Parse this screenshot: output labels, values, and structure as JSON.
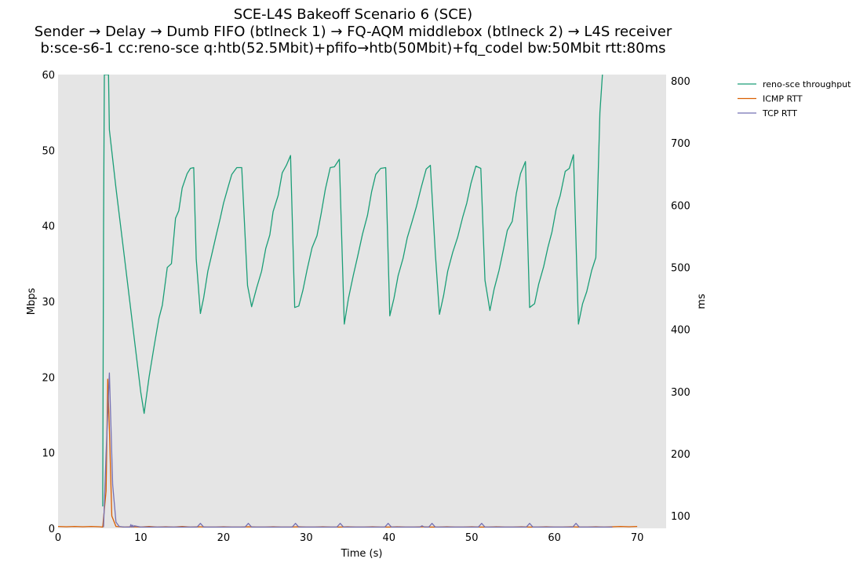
{
  "chart_data": {
    "type": "line",
    "title_lines": [
      "SCE-L4S Bakeoff Scenario 6 (SCE)",
      "Sender → Delay → Dumb FIFO (btlneck 1) → FQ-AQM middlebox (btlneck 2) → L4S receiver",
      "b:sce-s6-1 cc:reno-sce q:htb(52.5Mbit)+pfifo→htb(50Mbit)+fq_codel bw:50Mbit rtt:80ms"
    ],
    "xlabel": "Time (s)",
    "ylabel": "Mbps",
    "y2label": "ms",
    "xlim": [
      0,
      73.5
    ],
    "ylim": [
      0,
      60
    ],
    "y2lim": [
      80,
      810
    ],
    "xticks": [
      0,
      10,
      20,
      30,
      40,
      50,
      60,
      70
    ],
    "yticks": [
      0,
      10,
      20,
      30,
      40,
      50,
      60
    ],
    "y2ticks": [
      100,
      200,
      300,
      400,
      500,
      600,
      700,
      800
    ],
    "grid": false,
    "legend_position": "outside-top-right",
    "series": [
      {
        "name": "reno-sce throughput",
        "axis": "left",
        "color": "#1b9e77",
        "x": [
          5.4,
          5.5,
          5.6,
          6.1,
          6.2,
          7.0,
          8.0,
          9.0,
          10.0,
          10.4,
          11.0,
          11.6,
          12.2,
          12.6,
          13.2,
          13.7,
          14.2,
          14.6,
          15.0,
          15.6,
          16.0,
          16.4,
          16.7,
          17.2,
          17.6,
          18.1,
          18.6,
          19.1,
          19.6,
          20.0,
          20.6,
          21.0,
          21.6,
          22.2,
          22.9,
          23.4,
          24.0,
          24.6,
          25.1,
          25.6,
          26.0,
          26.6,
          27.1,
          27.6,
          28.1,
          28.6,
          29.1,
          29.6,
          30.1,
          30.7,
          31.3,
          31.8,
          32.3,
          32.9,
          33.4,
          34.0,
          34.6,
          35.1,
          35.7,
          36.2,
          36.8,
          37.4,
          37.9,
          38.4,
          39.0,
          39.6,
          40.1,
          40.6,
          41.1,
          41.7,
          42.2,
          42.8,
          43.3,
          43.9,
          44.5,
          45.0,
          45.6,
          46.1,
          46.6,
          47.1,
          47.7,
          48.3,
          48.9,
          49.4,
          49.9,
          50.5,
          51.1,
          51.6,
          52.2,
          52.7,
          53.3,
          53.8,
          54.3,
          54.9,
          55.4,
          55.9,
          56.5,
          57.0,
          57.6,
          58.1,
          58.7,
          59.2,
          59.7,
          60.2,
          60.7,
          61.3,
          61.8,
          62.3,
          62.9,
          63.4,
          63.9,
          64.5,
          65.0,
          65.5,
          65.8
        ],
        "values": [
          2.9,
          40,
          60,
          60,
          52.7,
          45,
          36,
          27,
          18,
          15.2,
          20,
          24,
          27.8,
          29.5,
          34.5,
          35,
          41,
          42,
          45,
          46.9,
          47.6,
          47.7,
          35.6,
          28.4,
          30.5,
          34,
          36.3,
          38.7,
          41,
          43,
          45.3,
          46.8,
          47.7,
          47.7,
          32.1,
          29.3,
          31.8,
          34,
          37,
          38.8,
          41.9,
          44,
          47,
          48,
          49.3,
          29.2,
          29.4,
          31.5,
          34.2,
          37.1,
          38.7,
          41.6,
          44.8,
          47.7,
          47.8,
          48.8,
          27,
          30.4,
          33.5,
          35.9,
          38.9,
          41.4,
          44.5,
          46.8,
          47.6,
          47.7,
          28.1,
          30.4,
          33.4,
          35.7,
          38.4,
          40.6,
          42.5,
          45.1,
          47.5,
          48,
          36.4,
          28.3,
          30.8,
          34,
          36.5,
          38.5,
          41.1,
          43,
          45.6,
          47.9,
          47.6,
          32.8,
          28.8,
          31.6,
          34.1,
          36.7,
          39.4,
          40.6,
          44.3,
          46.9,
          48.5,
          29.2,
          29.7,
          32.3,
          34.6,
          37.1,
          39.2,
          42.2,
          44,
          47.2,
          47.6,
          49.4,
          27,
          29.7,
          31.3,
          34.1,
          35.8,
          55,
          60
        ]
      },
      {
        "name": "ICMP RTT",
        "axis": "right",
        "color": "#d95f02",
        "x": [
          0,
          1,
          2,
          3,
          4,
          5,
          5.4,
          5.8,
          6.0,
          6.2,
          6.5,
          7.0,
          8,
          9,
          10,
          11,
          12,
          13,
          14,
          15,
          16,
          17,
          18,
          19,
          20,
          21,
          22,
          23,
          24,
          25,
          26,
          27,
          28,
          29,
          30,
          31,
          32,
          33,
          34,
          35,
          36,
          37,
          38,
          39,
          40,
          41,
          42,
          43,
          44,
          45,
          46,
          47,
          48,
          49,
          50,
          51,
          52,
          53,
          54,
          55,
          56,
          57,
          58,
          59,
          60,
          61,
          62,
          63,
          64,
          65,
          66,
          67,
          68,
          69,
          70
        ],
        "values": [
          83,
          82.5,
          83,
          82.5,
          83,
          82.5,
          82,
          140,
          320,
          240,
          100,
          83,
          82,
          82.5,
          82,
          83,
          82,
          82.5,
          82,
          83,
          82,
          82.5,
          82,
          82,
          82.5,
          82,
          82,
          82.5,
          82,
          82,
          82.5,
          82,
          82,
          82.5,
          82,
          82,
          82.5,
          82,
          82,
          82.5,
          82,
          82,
          82.5,
          82,
          82,
          82.5,
          82,
          82,
          82.5,
          82,
          82,
          82.5,
          82,
          82,
          82.5,
          82,
          82,
          82.5,
          82,
          82,
          82.5,
          82,
          82,
          82.5,
          82,
          82,
          82.5,
          82,
          82,
          82.5,
          82,
          82.5,
          83,
          82.5,
          83
        ]
      },
      {
        "name": "TCP RTT",
        "axis": "right",
        "color": "#7570b3",
        "x": [
          5.5,
          5.8,
          6.2,
          6.6,
          7.0,
          7.4,
          8.0,
          8.7,
          8.8,
          8.9,
          9.0,
          9.1,
          9.2,
          10,
          11,
          12,
          13,
          14,
          15,
          16,
          16.8,
          17.2,
          17.6,
          18,
          19,
          20,
          21,
          22,
          22.6,
          23.0,
          23.4,
          24,
          25,
          26,
          27,
          28,
          28.3,
          28.7,
          29.1,
          30,
          31,
          32,
          33,
          33.7,
          34.1,
          34.5,
          35,
          36,
          37,
          38,
          39,
          39.5,
          39.9,
          40.3,
          41,
          42,
          43,
          43.7,
          44,
          44.3,
          44.8,
          45.2,
          45.6,
          46,
          47,
          48,
          49,
          50,
          50.8,
          51.2,
          51.6,
          52,
          53,
          54,
          55,
          56,
          56.6,
          57.0,
          57.4,
          58,
          59,
          60,
          61,
          62,
          62.2,
          62.6,
          63.0,
          64,
          65,
          66,
          67
        ],
        "values": [
          82,
          200,
          330,
          150,
          90,
          83,
          82,
          82,
          86,
          82,
          85,
          82,
          84,
          82,
          82,
          82,
          82,
          82,
          82,
          82,
          82,
          88,
          82,
          82,
          82,
          82,
          82,
          82,
          82,
          88,
          82,
          82,
          82,
          82,
          82,
          82,
          82,
          88,
          82,
          82,
          82,
          82,
          82,
          82,
          88,
          82,
          82,
          82,
          82,
          82,
          82,
          82,
          88,
          82,
          82,
          82,
          82,
          82,
          84,
          82,
          82,
          88,
          82,
          82,
          82,
          82,
          82,
          82,
          82,
          88,
          82,
          82,
          82,
          82,
          82,
          82,
          82,
          88,
          82,
          82,
          82,
          82,
          82,
          82,
          82,
          88,
          82,
          82,
          82,
          82,
          82
        ]
      }
    ]
  }
}
